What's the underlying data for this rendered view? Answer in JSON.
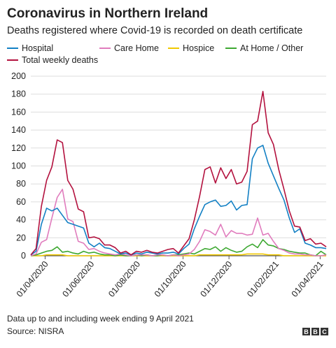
{
  "header": {
    "title": "Coronavirus in Northern Ireland",
    "subtitle": "Deaths registered where Covid-19 is recorded on death certificate"
  },
  "footer": {
    "note": "Data up to and including week ending 9 April 2021",
    "source": "Source: NISRA",
    "logo": [
      "B",
      "B",
      "C"
    ]
  },
  "chart_data": {
    "type": "line",
    "title": "Coronavirus in Northern Ireland",
    "subtitle": "Deaths registered where Covid-19 is recorded on death certificate",
    "xlabel": "",
    "ylabel": "",
    "ylim": [
      0,
      200
    ],
    "yticks": [
      0,
      20,
      40,
      60,
      80,
      100,
      120,
      140,
      160,
      180,
      200
    ],
    "xlim": [
      "2020-03-13",
      "2021-04-09"
    ],
    "xticks": [
      "01/04/2020",
      "01/06/2020",
      "01/08/2020",
      "01/10/2020",
      "01/12/2020",
      "01/02/2021",
      "01/04/2021"
    ],
    "grid": "horizontal",
    "legend_position": "top",
    "x": [
      "2020-03-13",
      "2020-03-20",
      "2020-03-27",
      "2020-04-03",
      "2020-04-10",
      "2020-04-17",
      "2020-04-24",
      "2020-05-01",
      "2020-05-08",
      "2020-05-15",
      "2020-05-22",
      "2020-05-29",
      "2020-06-05",
      "2020-06-12",
      "2020-06-19",
      "2020-06-26",
      "2020-07-03",
      "2020-07-10",
      "2020-07-17",
      "2020-07-24",
      "2020-07-31",
      "2020-08-07",
      "2020-08-14",
      "2020-08-21",
      "2020-08-28",
      "2020-09-04",
      "2020-09-11",
      "2020-09-18",
      "2020-09-25",
      "2020-10-02",
      "2020-10-09",
      "2020-10-16",
      "2020-10-23",
      "2020-10-30",
      "2020-11-06",
      "2020-11-13",
      "2020-11-20",
      "2020-11-27",
      "2020-12-04",
      "2020-12-11",
      "2020-12-18",
      "2020-12-25",
      "2021-01-01",
      "2021-01-08",
      "2021-01-15",
      "2021-01-22",
      "2021-01-29",
      "2021-02-05",
      "2021-02-12",
      "2021-02-19",
      "2021-02-26",
      "2021-03-05",
      "2021-03-12",
      "2021-03-19",
      "2021-03-26",
      "2021-04-02",
      "2021-04-09"
    ],
    "series": [
      {
        "name": "Hospital",
        "color": "#1380c4",
        "values": [
          1,
          5,
          35,
          53,
          50,
          53,
          45,
          37,
          35,
          33,
          31,
          14,
          10,
          14,
          9,
          8,
          5,
          2,
          3,
          1,
          3,
          2,
          4,
          3,
          2,
          3,
          3,
          4,
          2,
          8,
          13,
          30,
          44,
          57,
          60,
          62,
          55,
          56,
          61,
          51,
          56,
          57,
          108,
          120,
          123,
          103,
          89,
          75,
          62,
          42,
          26,
          30,
          14,
          12,
          9,
          9,
          8
        ]
      },
      {
        "name": "Care Home",
        "color": "#e07cbd",
        "values": [
          0,
          2,
          15,
          18,
          42,
          65,
          74,
          41,
          38,
          16,
          14,
          7,
          8,
          5,
          3,
          2,
          1,
          2,
          1,
          0,
          1,
          1,
          1,
          0,
          1,
          1,
          0,
          1,
          0,
          1,
          2,
          7,
          16,
          29,
          27,
          23,
          35,
          21,
          28,
          25,
          25,
          23,
          24,
          42,
          23,
          25,
          16,
          8,
          6,
          3,
          2,
          2,
          1,
          1,
          0,
          0,
          1
        ]
      },
      {
        "name": "Hospice",
        "color": "#f0c800",
        "values": [
          0,
          0,
          0,
          1,
          1,
          1,
          1,
          0,
          0,
          0,
          0,
          0,
          0,
          0,
          0,
          0,
          0,
          0,
          0,
          0,
          0,
          0,
          0,
          0,
          0,
          0,
          0,
          0,
          0,
          0,
          0,
          0,
          1,
          1,
          1,
          1,
          1,
          1,
          1,
          1,
          1,
          2,
          2,
          2,
          2,
          1,
          1,
          1,
          0,
          0,
          0,
          0,
          0,
          0,
          0,
          0,
          0
        ]
      },
      {
        "name": "At Home / Other",
        "color": "#3da831",
        "values": [
          0,
          1,
          3,
          5,
          6,
          10,
          4,
          5,
          3,
          2,
          5,
          3,
          4,
          2,
          1,
          1,
          0,
          1,
          0,
          0,
          1,
          0,
          1,
          0,
          0,
          1,
          0,
          1,
          1,
          2,
          3,
          2,
          5,
          8,
          7,
          10,
          5,
          9,
          6,
          4,
          5,
          10,
          13,
          9,
          18,
          12,
          11,
          8,
          7,
          5,
          4,
          3,
          3,
          1,
          0,
          5,
          1
        ]
      },
      {
        "name": "Total weekly deaths",
        "color": "#b3113e",
        "values": [
          1,
          8,
          55,
          84,
          99,
          129,
          126,
          84,
          74,
          52,
          49,
          20,
          21,
          19,
          12,
          12,
          9,
          3,
          5,
          1,
          5,
          4,
          6,
          4,
          3,
          5,
          7,
          8,
          3,
          11,
          19,
          40,
          66,
          96,
          99,
          81,
          98,
          86,
          96,
          80,
          82,
          94,
          146,
          150,
          183,
          137,
          124,
          96,
          74,
          50,
          33,
          32,
          17,
          19,
          13,
          14,
          10
        ]
      }
    ]
  }
}
